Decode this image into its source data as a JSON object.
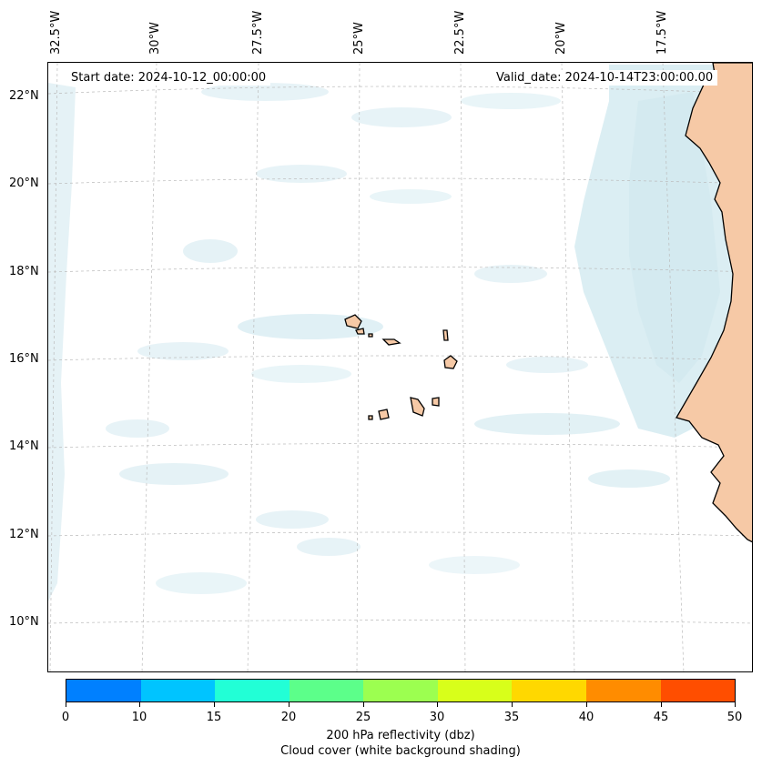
{
  "map": {
    "lon_labels": [
      "32.5°W",
      "30°W",
      "27.5°W",
      "25°W",
      "22.5°W",
      "20°W",
      "17.5°W"
    ],
    "lat_labels": [
      "22°N",
      "20°N",
      "18°N",
      "16°N",
      "14°N",
      "12°N",
      "10°N"
    ],
    "start_date": "Start date: 2024-10-12_00:00:00",
    "valid_date": "Valid_date: 2024-10-14T23:00:00.00",
    "colors": {
      "cloud": "#cfe8ef",
      "land": "#f6c9a6",
      "coast": "#000000",
      "grid": "#bbbbbb"
    }
  },
  "colorbar": {
    "ticks": [
      "0",
      "10",
      "15",
      "20",
      "25",
      "30",
      "35",
      "40",
      "45",
      "50"
    ],
    "colors": [
      "#0080ff",
      "#00c4ff",
      "#22ffd6",
      "#5cff8a",
      "#9cff50",
      "#d8ff1a",
      "#ffd800",
      "#ff8c00",
      "#ff4e00"
    ],
    "label": "200 hPa reflectivity (dbz)",
    "sublabel": "Cloud cover (white background shading)"
  }
}
